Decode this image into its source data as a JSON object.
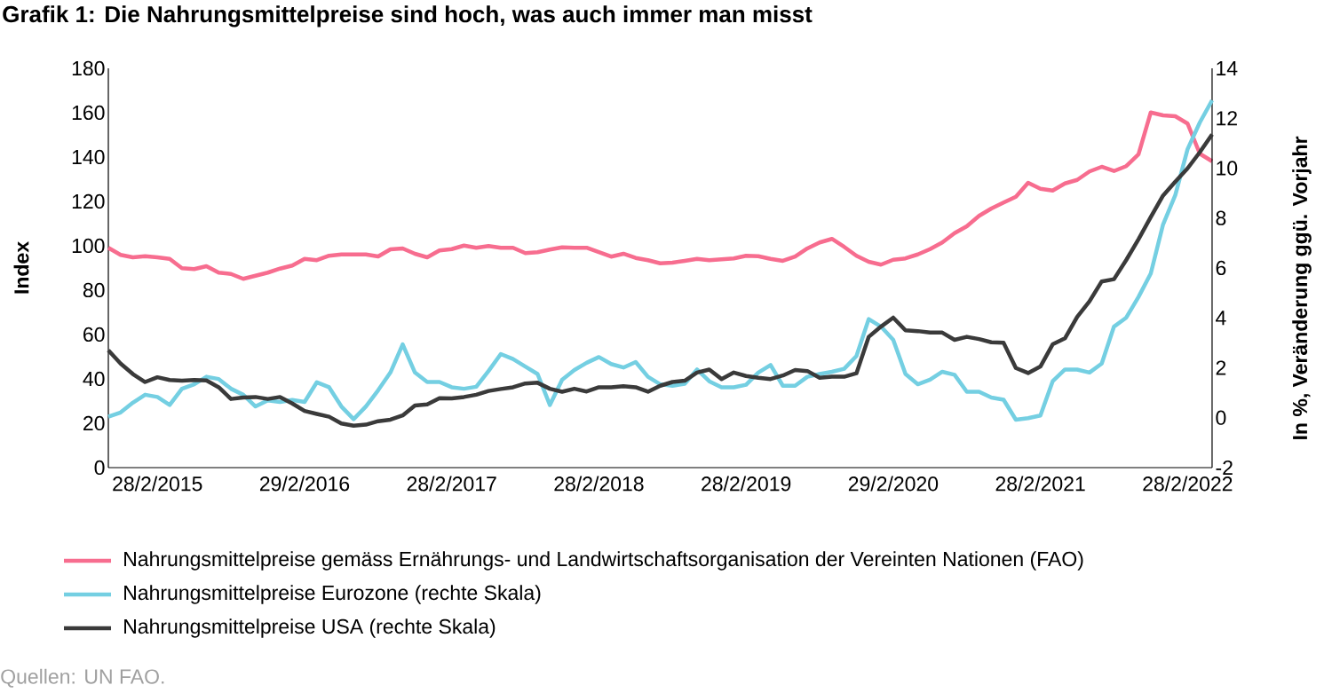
{
  "chart_data": {
    "type": "line",
    "title": "Grafik 1: Die Nahrungsmittelpreise sind hoch, was auch immer man misst",
    "ylabel": "Index",
    "y2label": "In %, Veränderung ggü. Vorjahr",
    "annotations": [
      "Quellen: UN FAO."
    ],
    "x": [
      "2014-10",
      "2014-11",
      "2014-12",
      "2015-01",
      "2015-02",
      "2015-03",
      "2015-04",
      "2015-05",
      "2015-06",
      "2015-07",
      "2015-08",
      "2015-09",
      "2015-10",
      "2015-11",
      "2015-12",
      "2016-01",
      "2016-02",
      "2016-03",
      "2016-04",
      "2016-05",
      "2016-06",
      "2016-07",
      "2016-08",
      "2016-09",
      "2016-10",
      "2016-11",
      "2016-12",
      "2017-01",
      "2017-02",
      "2017-03",
      "2017-04",
      "2017-05",
      "2017-06",
      "2017-07",
      "2017-08",
      "2017-09",
      "2017-10",
      "2017-11",
      "2017-12",
      "2018-01",
      "2018-02",
      "2018-03",
      "2018-04",
      "2018-05",
      "2018-06",
      "2018-07",
      "2018-08",
      "2018-09",
      "2018-10",
      "2018-11",
      "2018-12",
      "2019-01",
      "2019-02",
      "2019-03",
      "2019-04",
      "2019-05",
      "2019-06",
      "2019-07",
      "2019-08",
      "2019-09",
      "2019-10",
      "2019-11",
      "2019-12",
      "2020-01",
      "2020-02",
      "2020-03",
      "2020-04",
      "2020-05",
      "2020-06",
      "2020-07",
      "2020-08",
      "2020-09",
      "2020-10",
      "2020-11",
      "2020-12",
      "2021-01",
      "2021-02",
      "2021-03",
      "2021-04",
      "2021-05",
      "2021-06",
      "2021-07",
      "2021-08",
      "2021-09",
      "2021-10",
      "2021-11",
      "2021-12",
      "2022-01",
      "2022-02",
      "2022-03",
      "2022-04"
    ],
    "series": [
      {
        "name": "Nahrungsmittelpreise gemäss Ernährungs- und Landwirtschaftsorganisation der Vereinten Nationen (FAO)",
        "color": "#f76d8f",
        "values": [
          99.1,
          95.9,
          94.8,
          95.3,
          94.8,
          94.1,
          89.9,
          89.5,
          90.8,
          87.9,
          87.3,
          85.1,
          86.5,
          87.9,
          89.7,
          91.1,
          94.1,
          93.5,
          95.5,
          96.1,
          96.1,
          96.1,
          95.2,
          98.4,
          98.8,
          96.4,
          94.8,
          97.9,
          98.5,
          100.1,
          99.1,
          99.9,
          99.1,
          99.1,
          96.7,
          97.1,
          98.3,
          99.3,
          99.1,
          99.1,
          97.1,
          95.1,
          96.4,
          94.5,
          93.5,
          92.1,
          92.4,
          93.2,
          94.1,
          93.5,
          93.9,
          94.3,
          95.5,
          95.3,
          94.1,
          93.2,
          95.1,
          98.8,
          101.5,
          103.1,
          99.5,
          95.5,
          92.8,
          91.5,
          93.7,
          94.3,
          96.1,
          98.5,
          101.5,
          105.7,
          108.8,
          113.5,
          116.8,
          119.5,
          122.1,
          128.4,
          125.7,
          124.9,
          128.1,
          129.7,
          133.5,
          135.6,
          133.7,
          135.9,
          141.2,
          160.1,
          158.8,
          158.4,
          155.1,
          141.5,
          138.1
        ]
      },
      {
        "name": "Nahrungsmittelpreise Eurozone (rechte Skala)",
        "color": "#74cfe2",
        "axis": "y2",
        "values": [
          0.04,
          0.21,
          0.6,
          0.92,
          0.83,
          0.51,
          1.16,
          1.34,
          1.64,
          1.55,
          1.16,
          0.92,
          0.45,
          0.69,
          0.63,
          0.71,
          0.63,
          1.42,
          1.22,
          0.45,
          -0.06,
          0.45,
          1.1,
          1.81,
          2.94,
          1.81,
          1.43,
          1.43,
          1.22,
          1.16,
          1.24,
          1.87,
          2.55,
          2.35,
          2.05,
          1.75,
          0.51,
          1.52,
          1.91,
          2.2,
          2.43,
          2.15,
          2.01,
          2.23,
          1.64,
          1.34,
          1.28,
          1.36,
          1.93,
          1.46,
          1.22,
          1.22,
          1.32,
          1.81,
          2.11,
          1.28,
          1.28,
          1.64,
          1.75,
          1.84,
          1.96,
          2.47,
          3.95,
          3.65,
          3.12,
          1.75,
          1.34,
          1.52,
          1.84,
          1.72,
          1.04,
          1.04,
          0.81,
          0.72,
          -0.08,
          -0.02,
          0.09,
          1.46,
          1.93,
          1.93,
          1.81,
          2.17,
          3.65,
          4.01,
          4.84,
          5.78,
          7.74,
          8.92,
          10.76,
          11.83,
          12.72
        ]
      },
      {
        "name": "Nahrungsmittelpreise USA (rechte Skala)",
        "color": "#3a3a3a",
        "axis": "y2",
        "values": [
          2.7,
          2.17,
          1.75,
          1.43,
          1.62,
          1.51,
          1.48,
          1.51,
          1.49,
          1.22,
          0.75,
          0.81,
          0.83,
          0.75,
          0.83,
          0.57,
          0.27,
          0.15,
          0.04,
          -0.23,
          -0.32,
          -0.28,
          -0.14,
          -0.08,
          0.09,
          0.49,
          0.53,
          0.78,
          0.77,
          0.83,
          0.92,
          1.07,
          1.15,
          1.22,
          1.37,
          1.4,
          1.16,
          1.04,
          1.16,
          1.05,
          1.22,
          1.22,
          1.26,
          1.22,
          1.04,
          1.28,
          1.43,
          1.48,
          1.81,
          1.93,
          1.55,
          1.81,
          1.67,
          1.6,
          1.55,
          1.69,
          1.91,
          1.87,
          1.6,
          1.64,
          1.64,
          1.78,
          3.24,
          3.65,
          4.01,
          3.5,
          3.47,
          3.41,
          3.41,
          3.12,
          3.24,
          3.15,
          3.02,
          3.0,
          1.99,
          1.79,
          2.05,
          2.94,
          3.18,
          4.04,
          4.66,
          5.46,
          5.55,
          6.32,
          7.15,
          8.04,
          8.9,
          9.46,
          9.99,
          10.64,
          11.35
        ]
      }
    ],
    "xlim": [
      "2014-10",
      "2022-04"
    ],
    "xticks": [
      {
        "value": "2015-02",
        "label": "28/2/2015"
      },
      {
        "value": "2016-02",
        "label": "29/2/2016"
      },
      {
        "value": "2017-02",
        "label": "28/2/2017"
      },
      {
        "value": "2018-02",
        "label": "28/2/2018"
      },
      {
        "value": "2019-02",
        "label": "28/2/2019"
      },
      {
        "value": "2020-02",
        "label": "29/2/2020"
      },
      {
        "value": "2021-02",
        "label": "28/2/2021"
      },
      {
        "value": "2022-02",
        "label": "28/2/2022"
      }
    ],
    "ylim": [
      0,
      180
    ],
    "yticks": [
      0,
      20,
      40,
      60,
      80,
      100,
      120,
      140,
      160,
      180
    ],
    "y2lim": [
      -2,
      14
    ],
    "y2ticks": [
      -2,
      0,
      2,
      4,
      6,
      8,
      10,
      12,
      14
    ],
    "legend": "bottom",
    "line_style": "solid"
  }
}
